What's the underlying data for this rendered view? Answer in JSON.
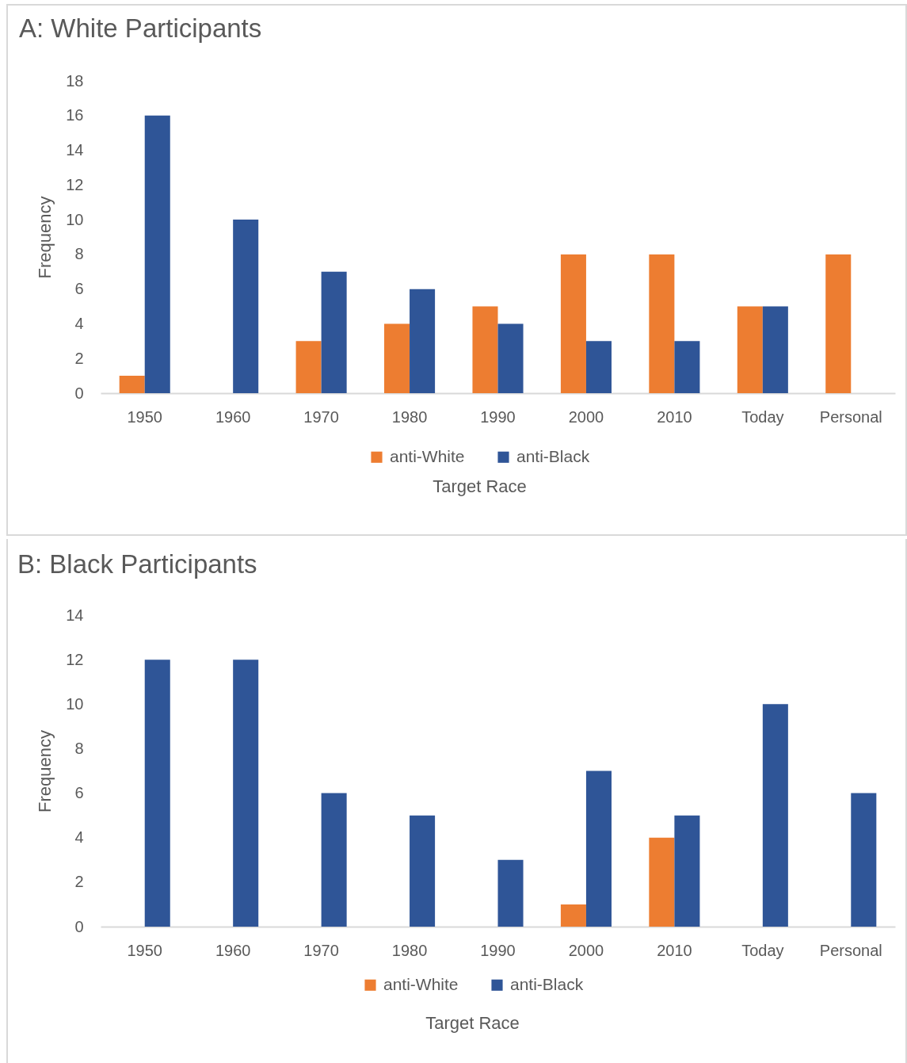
{
  "chart_data": [
    {
      "type": "bar",
      "title": "A: White Participants",
      "xlabel": "Target Race",
      "ylabel": "Frequency",
      "categories": [
        "1950",
        "1960",
        "1970",
        "1980",
        "1990",
        "2000",
        "2010",
        "Today",
        "Personal"
      ],
      "series": [
        {
          "name": "anti-White",
          "color": "#ed7d31",
          "values": [
            1,
            null,
            3,
            4,
            5,
            8,
            8,
            5,
            8
          ]
        },
        {
          "name": "anti-Black",
          "color": "#2f5597",
          "values": [
            16,
            10,
            7,
            6,
            4,
            3,
            3,
            5,
            null
          ]
        }
      ],
      "ylim": [
        0,
        18
      ],
      "yticks": [
        0,
        2,
        4,
        6,
        8,
        10,
        12,
        14,
        16,
        18
      ],
      "legend": "bottom"
    },
    {
      "type": "bar",
      "title": "B: Black Participants",
      "xlabel": "Target Race",
      "ylabel": "Frequency",
      "categories": [
        "1950",
        "1960",
        "1970",
        "1980",
        "1990",
        "2000",
        "2010",
        "Today",
        "Personal"
      ],
      "series": [
        {
          "name": "anti-White",
          "color": "#ed7d31",
          "values": [
            null,
            null,
            null,
            null,
            null,
            1,
            4,
            null,
            null
          ]
        },
        {
          "name": "anti-Black",
          "color": "#2f5597",
          "values": [
            12,
            12,
            6,
            5,
            3,
            7,
            5,
            10,
            6
          ]
        }
      ],
      "ylim": [
        0,
        14
      ],
      "yticks": [
        0,
        2,
        4,
        6,
        8,
        10,
        12,
        14
      ],
      "legend": "bottom"
    }
  ]
}
